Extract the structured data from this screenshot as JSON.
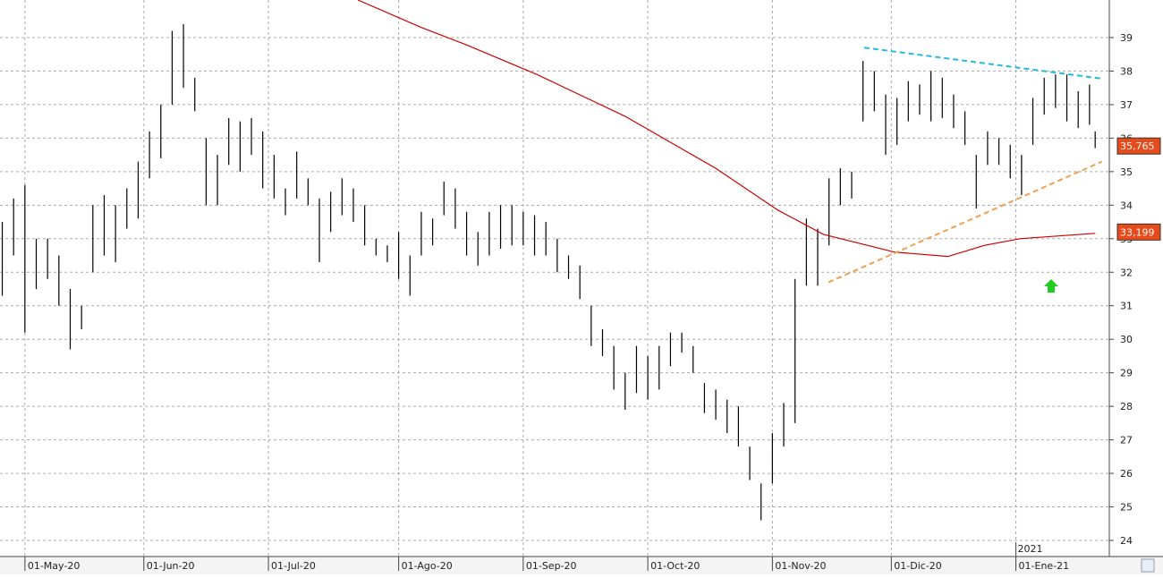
{
  "chart_data": {
    "type": "ohlc",
    "xlim": [
      -4.4,
      191.5
    ],
    "ylim": [
      23.52,
      40.12
    ],
    "xticks": [
      {
        "value": 0,
        "label": "01-May-20"
      },
      {
        "value": 21,
        "label": "01-Jun-20"
      },
      {
        "value": 43,
        "label": "01-Jul-20"
      },
      {
        "value": 66,
        "label": "01-Ago-20"
      },
      {
        "value": 88,
        "label": "01-Sep-20"
      },
      {
        "value": 110,
        "label": "01-Oct-20"
      },
      {
        "value": 132,
        "label": "01-Nov-20"
      },
      {
        "value": 153,
        "label": "01-Dic-20"
      },
      {
        "value": 175,
        "label": "01-Ene-21"
      }
    ],
    "year_marker": {
      "value": 175,
      "label": "2021"
    },
    "yticks": [
      24,
      25,
      26,
      27,
      28,
      29,
      30,
      31,
      32,
      33,
      34,
      35,
      36,
      37,
      38,
      39
    ],
    "grid": true,
    "bars": {
      "color": "#000000",
      "x": [
        -4,
        -2,
        0,
        2,
        4,
        6,
        8,
        10,
        12,
        14,
        16,
        18,
        20,
        22,
        24,
        26,
        28,
        30,
        32,
        34,
        36,
        38,
        40,
        42,
        44,
        46,
        48,
        50,
        52,
        54,
        56,
        58,
        60,
        62,
        64,
        66,
        68,
        70,
        72,
        74,
        76,
        78,
        80,
        82,
        84,
        86,
        88,
        90,
        92,
        94,
        96,
        98,
        100,
        102,
        104,
        106,
        108,
        110,
        112,
        114,
        116,
        118,
        120,
        122,
        124,
        126,
        128,
        130,
        132,
        134,
        136,
        138,
        140,
        142,
        144,
        146,
        148,
        150,
        152,
        154,
        156,
        158,
        160,
        162,
        164,
        166,
        168,
        170,
        172,
        174,
        176,
        178,
        180,
        182,
        184,
        186,
        188,
        189
      ],
      "high": [
        33.5,
        34.2,
        34.6,
        33,
        33,
        32.5,
        31.5,
        31,
        34,
        34.3,
        34,
        34.5,
        35.3,
        36.2,
        37,
        39.2,
        39.4,
        37.8,
        36,
        35.5,
        36.6,
        36.5,
        36.6,
        36.2,
        35.5,
        34.5,
        35.6,
        34.8,
        34.2,
        34.4,
        34.8,
        34.5,
        34,
        33,
        32.8,
        33.2,
        32.5,
        33.8,
        33.6,
        34.7,
        34.5,
        33.8,
        33.2,
        33.8,
        34,
        34,
        33.8,
        33.7,
        33.5,
        33,
        32.5,
        32.2,
        31,
        30.3,
        29.8,
        29,
        29.8,
        29.5,
        29.8,
        30.2,
        30.2,
        29.8,
        28.7,
        28.5,
        28.2,
        28,
        26.8,
        25.7,
        27.2,
        28.1,
        31.8,
        33.6,
        33.3,
        34.8,
        35.1,
        35,
        38.3,
        38,
        37.3,
        37.2,
        37.7,
        37.6,
        38,
        37.8,
        37.3,
        36.8,
        35.5,
        36.2,
        36,
        35.8,
        35.5,
        37.2,
        37.8,
        37.9,
        37.9,
        37.4,
        37.6,
        36.2
      ],
      "low": [
        31.3,
        32.5,
        30.2,
        31.5,
        31.8,
        31,
        29.7,
        30.3,
        32,
        32.5,
        32.3,
        33.3,
        33.6,
        34.8,
        35.4,
        37,
        37.5,
        36.8,
        34,
        34,
        35.2,
        35,
        35.5,
        34.5,
        34.2,
        33.7,
        34.2,
        34,
        32.3,
        33.2,
        33.7,
        33.5,
        32.8,
        32.5,
        32.3,
        31.8,
        31.3,
        32.5,
        32.8,
        33.7,
        33.3,
        32.5,
        32.2,
        32.5,
        32.7,
        32.8,
        32.8,
        32.5,
        32.5,
        32,
        31.8,
        31.2,
        29.8,
        29.5,
        28.5,
        27.9,
        28.4,
        28.2,
        28.5,
        29.2,
        29.6,
        29,
        27.8,
        27.6,
        27.2,
        26.8,
        25.8,
        24.6,
        25.7,
        26.8,
        27.5,
        31.6,
        31.6,
        32.8,
        34,
        34.2,
        36.5,
        36.8,
        35.5,
        35.8,
        36.5,
        36.7,
        36.5,
        36.6,
        36.3,
        35.8,
        33.9,
        35.2,
        35.2,
        34.8,
        34.3,
        35.8,
        36.7,
        36.9,
        36.5,
        36.3,
        36.4,
        35.7
      ]
    },
    "moving_average": {
      "color": "#cc0000",
      "x": [
        58.8,
        70,
        77.7,
        90.4,
        106,
        122,
        133,
        141,
        153.6,
        163,
        169.4,
        175.7,
        189
      ],
      "values": [
        40.12,
        39.3,
        38.8,
        37.9,
        36.65,
        35.1,
        33.85,
        33.13,
        32.6,
        32.47,
        32.8,
        33.0,
        33.16
      ]
    },
    "trendlines": [
      {
        "color": "#22bbdd",
        "x": [
          148.2,
          190.4
        ],
        "values": [
          38.7,
          37.77
        ]
      },
      {
        "color": "#f0a050",
        "x": [
          141.9,
          190.2
        ],
        "values": [
          31.7,
          35.3
        ]
      }
    ],
    "price_labels": [
      {
        "value": 35.765,
        "label": "35,765"
      },
      {
        "value": 33.199,
        "label": "33,199"
      }
    ]
  }
}
